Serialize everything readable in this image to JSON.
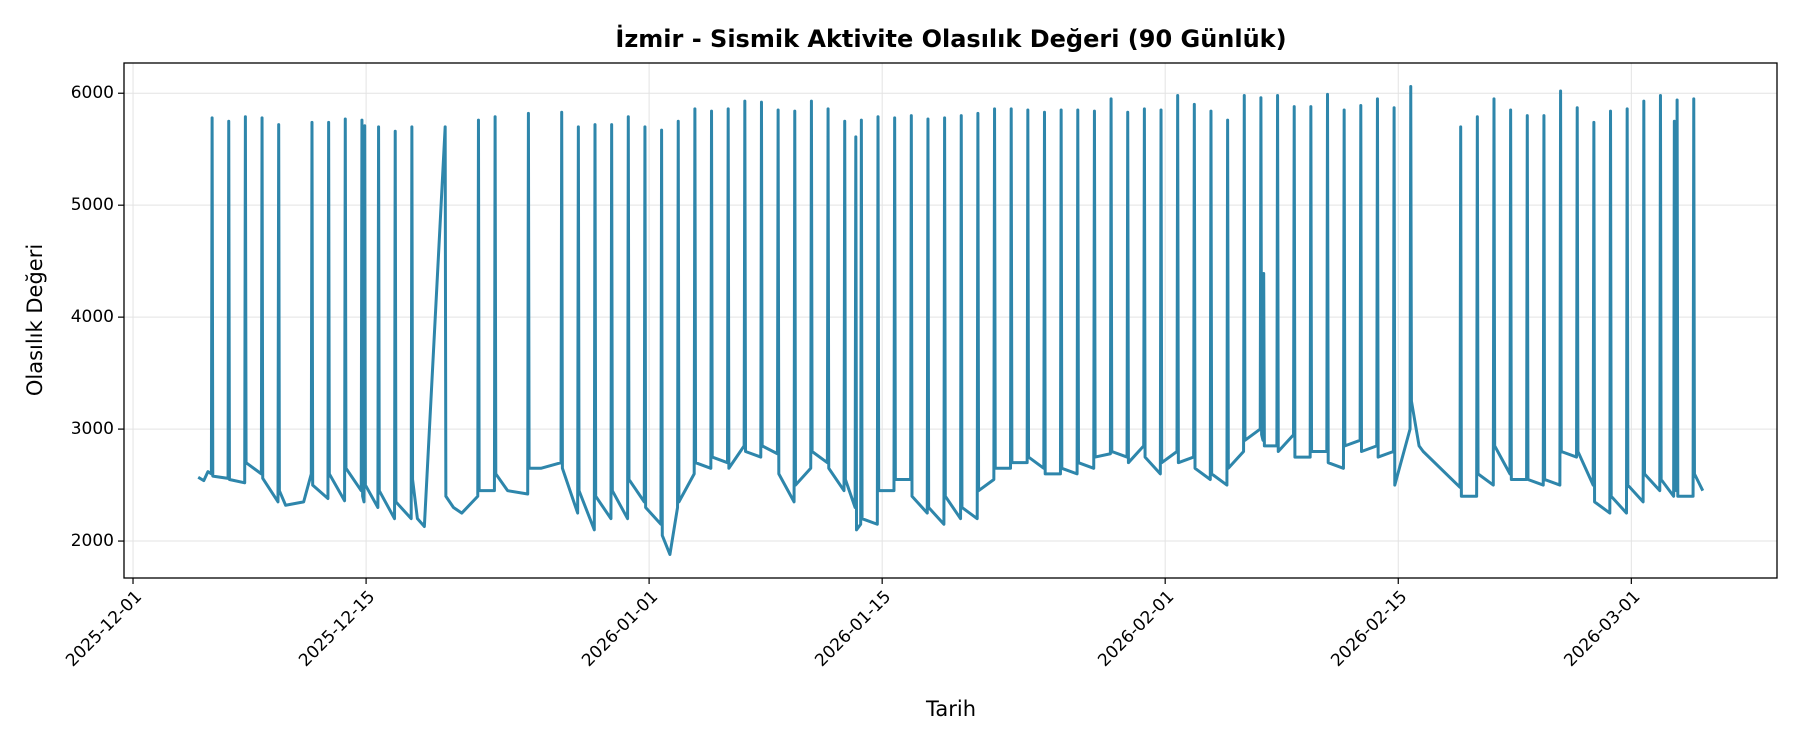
{
  "chart_data": {
    "type": "line",
    "title": "İzmir - Sismik Aktivite Olasılık Değeri (90 Günlük)",
    "x_label": "Tarih",
    "y_label": "Olasılık Değeri",
    "color": "#2e86ab",
    "grid": true,
    "xlim": [
      "2025-11-30 11:00",
      "2026-03-09 18:00"
    ],
    "xticks": [
      "2025-12-01",
      "2025-12-15",
      "2026-01-01",
      "2026-01-15",
      "2026-02-01",
      "2026-02-15",
      "2026-03-01"
    ],
    "ylim": [
      1670,
      6270
    ],
    "yticks": [
      2000,
      3000,
      4000,
      5000,
      6000
    ],
    "x": [
      "2025-12-04 22:00",
      "2025-12-05 06:00",
      "2025-12-05 12:00",
      "2025-12-05 17:00",
      "2025-12-05 18:00",
      "2025-12-05 19:00",
      "2025-12-06 17:00",
      "2025-12-06 18:00",
      "2025-12-06 19:00",
      "2025-12-07 17:00",
      "2025-12-07 18:00",
      "2025-12-07 19:00",
      "2025-12-08 17:00",
      "2025-12-08 18:00",
      "2025-12-08 19:00",
      "2025-12-09 17:00",
      "2025-12-09 18:00",
      "2025-12-09 19:00",
      "2025-12-10 04:00",
      "2025-12-11 06:00",
      "2025-12-11 17:00",
      "2025-12-11 18:00",
      "2025-12-11 19:00",
      "2025-12-12 17:00",
      "2025-12-12 18:00",
      "2025-12-12 19:00",
      "2025-12-13 17:00",
      "2025-12-13 18:00",
      "2025-12-13 19:00",
      "2025-12-14 17:00",
      "2025-12-14 18:00",
      "2025-12-14 19:00",
      "2025-12-14 21:00",
      "2025-12-14 22:00",
      "2025-12-14 23:00",
      "2025-12-15 17:00",
      "2025-12-15 18:00",
      "2025-12-15 19:00",
      "2025-12-16 17:00",
      "2025-12-16 18:00",
      "2025-12-16 19:00",
      "2025-12-17 17:00",
      "2025-12-17 18:00",
      "2025-12-17 19:00",
      "2025-12-18 02:00",
      "2025-12-18 12:00",
      "2025-12-19 18:00",
      "2025-12-19 19:00",
      "2025-12-20 06:00",
      "2025-12-20 18:00",
      "2025-12-21 17:00",
      "2025-12-21 18:00",
      "2025-12-21 19:00",
      "2025-12-22 17:00",
      "2025-12-22 18:00",
      "2025-12-22 19:00",
      "2025-12-23 12:00",
      "2025-12-24 17:00",
      "2025-12-24 18:00",
      "2025-12-24 19:00",
      "2025-12-25 12:00",
      "2025-12-26 17:00",
      "2025-12-26 18:00",
      "2025-12-26 19:00",
      "2025-12-27 17:00",
      "2025-12-27 18:00",
      "2025-12-27 19:00",
      "2025-12-28 17:00",
      "2025-12-28 18:00",
      "2025-12-28 19:00",
      "2025-12-29 17:00",
      "2025-12-29 18:00",
      "2025-12-29 19:00",
      "2025-12-30 17:00",
      "2025-12-30 18:00",
      "2025-12-30 19:00",
      "2025-12-31 17:00",
      "2025-12-31 18:00",
      "2025-12-31 19:00",
      "2026-01-01 17:00",
      "2026-01-01 18:00",
      "2026-01-01 19:00",
      "2026-01-02 06:00",
      "2026-01-02 17:00",
      "2026-01-02 18:00",
      "2026-01-02 19:00",
      "2026-01-03 17:00",
      "2026-01-03 18:00",
      "2026-01-03 19:00",
      "2026-01-04 17:00",
      "2026-01-04 18:00",
      "2026-01-04 19:00",
      "2026-01-05 17:00",
      "2026-01-05 18:00",
      "2026-01-05 19:00",
      "2026-01-06 17:00",
      "2026-01-06 18:00",
      "2026-01-06 19:00",
      "2026-01-07 17:00",
      "2026-01-07 18:00",
      "2026-01-07 19:00",
      "2026-01-08 17:00",
      "2026-01-08 18:00",
      "2026-01-08 19:00",
      "2026-01-09 17:00",
      "2026-01-09 18:00",
      "2026-01-09 19:00",
      "2026-01-10 17:00",
      "2026-01-10 18:00",
      "2026-01-10 19:00",
      "2026-01-11 17:00",
      "2026-01-11 18:00",
      "2026-01-11 19:00",
      "2026-01-12 17:00",
      "2026-01-12 18:00",
      "2026-01-12 19:00",
      "2026-01-13 09:00",
      "2026-01-13 10:00",
      "2026-01-13 11:00",
      "2026-01-13 17:00",
      "2026-01-13 18:00",
      "2026-01-13 19:00",
      "2026-01-14 17:00",
      "2026-01-14 18:00",
      "2026-01-14 19:00",
      "2026-01-15 17:00",
      "2026-01-15 18:00",
      "2026-01-15 19:00",
      "2026-01-16 17:00",
      "2026-01-16 18:00",
      "2026-01-16 19:00",
      "2026-01-17 17:00",
      "2026-01-17 18:00",
      "2026-01-17 19:00",
      "2026-01-18 17:00",
      "2026-01-18 18:00",
      "2026-01-18 19:00",
      "2026-01-19 17:00",
      "2026-01-19 18:00",
      "2026-01-19 19:00",
      "2026-01-20 17:00",
      "2026-01-20 18:00",
      "2026-01-20 19:00",
      "2026-01-21 17:00",
      "2026-01-21 18:00",
      "2026-01-21 19:00",
      "2026-01-22 17:00",
      "2026-01-22 18:00",
      "2026-01-22 19:00",
      "2026-01-23 17:00",
      "2026-01-23 18:00",
      "2026-01-23 19:00",
      "2026-01-24 17:00",
      "2026-01-24 18:00",
      "2026-01-24 19:00",
      "2026-01-25 17:00",
      "2026-01-25 18:00",
      "2026-01-25 19:00",
      "2026-01-26 17:00",
      "2026-01-26 18:00",
      "2026-01-26 19:00",
      "2026-01-27 17:00",
      "2026-01-27 18:00",
      "2026-01-27 19:00",
      "2026-01-28 17:00",
      "2026-01-28 18:00",
      "2026-01-28 19:00",
      "2026-01-29 17:00",
      "2026-01-29 18:00",
      "2026-01-29 19:00",
      "2026-01-30 17:00",
      "2026-01-30 18:00",
      "2026-01-30 19:00",
      "2026-01-31 17:00",
      "2026-01-31 18:00",
      "2026-01-31 19:00",
      "2026-02-01 17:00",
      "2026-02-01 18:00",
      "2026-02-01 19:00",
      "2026-02-02 17:00",
      "2026-02-02 18:00",
      "2026-02-02 19:00",
      "2026-02-03 17:00",
      "2026-02-03 18:00",
      "2026-02-03 19:00",
      "2026-02-04 17:00",
      "2026-02-04 18:00",
      "2026-02-04 19:00",
      "2026-02-05 17:00",
      "2026-02-05 18:00",
      "2026-02-05 19:00",
      "2026-02-06 17:00",
      "2026-02-06 18:00",
      "2026-02-06 19:00",
      "2026-02-06 21:00",
      "2026-02-06 22:00",
      "2026-02-06 23:00",
      "2026-02-07 17:00",
      "2026-02-07 18:00",
      "2026-02-07 19:00",
      "2026-02-08 17:00",
      "2026-02-08 18:00",
      "2026-02-08 19:00",
      "2026-02-09 17:00",
      "2026-02-09 18:00",
      "2026-02-09 19:00",
      "2026-02-10 17:00",
      "2026-02-10 18:00",
      "2026-02-10 19:00",
      "2026-02-11 17:00",
      "2026-02-11 18:00",
      "2026-02-11 19:00",
      "2026-02-12 17:00",
      "2026-02-12 18:00",
      "2026-02-12 19:00",
      "2026-02-13 17:00",
      "2026-02-13 18:00",
      "2026-02-13 19:00",
      "2026-02-14 17:00",
      "2026-02-14 18:00",
      "2026-02-14 19:00",
      "2026-02-15 17:00",
      "2026-02-15 18:00",
      "2026-02-15 19:00",
      "2026-02-16 06:00",
      "2026-02-16 12:00",
      "2026-02-18 17:00",
      "2026-02-18 18:00",
      "2026-02-18 19:00",
      "2026-02-19 17:00",
      "2026-02-19 18:00",
      "2026-02-19 19:00",
      "2026-02-20 17:00",
      "2026-02-20 18:00",
      "2026-02-20 19:00",
      "2026-02-21 17:00",
      "2026-02-21 18:00",
      "2026-02-21 19:00",
      "2026-02-22 17:00",
      "2026-02-22 18:00",
      "2026-02-22 19:00",
      "2026-02-23 17:00",
      "2026-02-23 18:00",
      "2026-02-23 19:00",
      "2026-02-24 17:00",
      "2026-02-24 18:00",
      "2026-02-24 19:00",
      "2026-02-25 17:00",
      "2026-02-25 18:00",
      "2026-02-25 19:00",
      "2026-02-26 17:00",
      "2026-02-26 18:00",
      "2026-02-26 19:00",
      "2026-02-27 17:00",
      "2026-02-27 18:00",
      "2026-02-27 19:00",
      "2026-02-28 17:00",
      "2026-02-28 18:00",
      "2026-02-28 19:00",
      "2026-03-01 17:00",
      "2026-03-01 18:00",
      "2026-03-01 19:00",
      "2026-03-02 17:00",
      "2026-03-02 18:00",
      "2026-03-02 19:00",
      "2026-03-03 13:00",
      "2026-03-03 14:00",
      "2026-03-03 15:00",
      "2026-03-03 17:00",
      "2026-03-03 18:00",
      "2026-03-03 19:00",
      "2026-03-04 17:00",
      "2026-03-04 18:00",
      "2026-03-04 19:00",
      "2026-03-05 07:00"
    ],
    "values": [
      2570,
      2540,
      2620,
      2600,
      5780,
      2580,
      2560,
      5750,
      2550,
      2520,
      5790,
      2700,
      2600,
      5780,
      2560,
      2350,
      5720,
      2450,
      2320,
      2350,
      2600,
      5740,
      2500,
      2380,
      5740,
      2600,
      2360,
      5770,
      2650,
      2450,
      5760,
      2400,
      2350,
      5710,
      2500,
      2300,
      5700,
      2450,
      2200,
      5660,
      2350,
      2200,
      5700,
      2550,
      2200,
      2130,
      5700,
      2400,
      2300,
      2250,
      2400,
      5760,
      2450,
      2450,
      5790,
      2600,
      2450,
      2420,
      5820,
      2650,
      2650,
      2700,
      5830,
      2650,
      2250,
      5700,
      2450,
      2100,
      5720,
      2400,
      2200,
      5720,
      2450,
      2200,
      5790,
      2550,
      2350,
      5700,
      2300,
      2150,
      5670,
      2050,
      1880,
      2300,
      5750,
      2350,
      2600,
      5860,
      2700,
      2650,
      5840,
      2750,
      2700,
      5860,
      2650,
      2850,
      5930,
      2800,
      2750,
      5920,
      2850,
      2780,
      5850,
      2600,
      2350,
      5840,
      2500,
      2650,
      5930,
      2800,
      2700,
      5860,
      2650,
      2450,
      5750,
      2550,
      2300,
      5610,
      2100,
      2150,
      5760,
      2200,
      2150,
      5790,
      2450,
      2450,
      5780,
      2550,
      2550,
      5800,
      2400,
      2250,
      5770,
      2300,
      2150,
      5780,
      2400,
      2200,
      5800,
      2300,
      2200,
      5820,
      2450,
      2550,
      5860,
      2650,
      2650,
      5860,
      2700,
      2700,
      5850,
      2750,
      2650,
      5830,
      2600,
      2600,
      5850,
      2650,
      2600,
      5850,
      2700,
      2650,
      5840,
      2750,
      2780,
      5950,
      2800,
      2750,
      5830,
      2700,
      2850,
      5860,
      2750,
      2600,
      5850,
      2700,
      2800,
      5980,
      2700,
      2750,
      5900,
      2650,
      2550,
      5840,
      2600,
      2500,
      5760,
      2650,
      2800,
      5980,
      2900,
      3000,
      5960,
      2950,
      2900,
      4390,
      2850,
      2850,
      5980,
      2800,
      2950,
      5880,
      2750,
      2750,
      5880,
      2800,
      2800,
      5990,
      2700,
      2650,
      5850,
      2850,
      2900,
      5890,
      2800,
      2850,
      5950,
      2750,
      2800,
      5870,
      2500,
      3000,
      6060,
      3250,
      2850,
      2800,
      2480,
      5700,
      2400,
      2400,
      5790,
      2600,
      2500,
      5950,
      2850,
      2600,
      5850,
      2550,
      2550,
      5800,
      2550,
      2500,
      5800,
      2550,
      2500,
      6020,
      2800,
      2750,
      5870,
      2800,
      2500,
      5740,
      2350,
      2250,
      5840,
      2400,
      2250,
      5860,
      2500,
      2350,
      5930,
      2600,
      2450,
      5980,
      2550,
      2400,
      5750,
      2900,
      2450,
      5940,
      2400,
      2400,
      5950,
      2600,
      2450
    ]
  }
}
